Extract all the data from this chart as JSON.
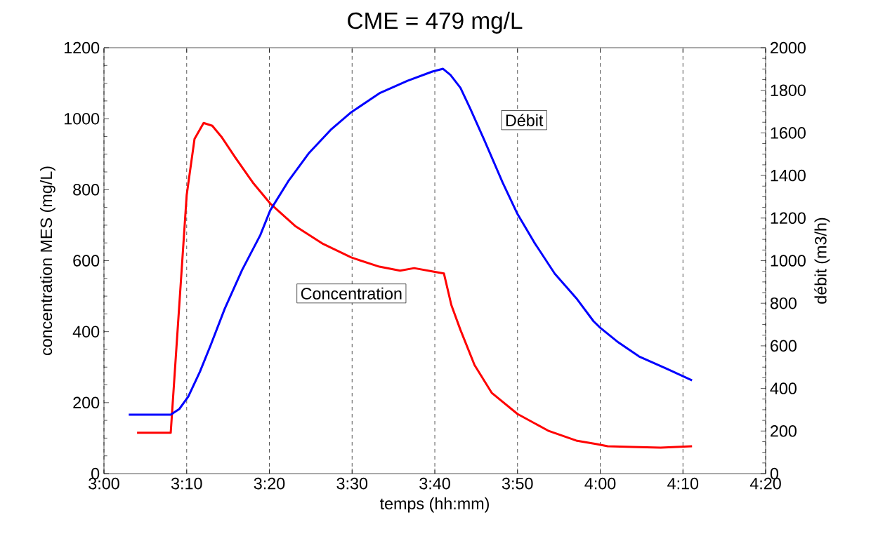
{
  "chart_data": {
    "type": "line",
    "title": "CME = 479 mg/L",
    "xlabel": "temps (hh:mm)",
    "ylabel": "concentration MES (mg/L)",
    "y2label": "débit (m3/h)",
    "xlim": [
      3.0,
      4.3333
    ],
    "xticks": [
      {
        "value": 3.0,
        "label": "3:00"
      },
      {
        "value": 3.1667,
        "label": "3:10"
      },
      {
        "value": 3.3333,
        "label": "3:20"
      },
      {
        "value": 3.5,
        "label": "3:30"
      },
      {
        "value": 3.6667,
        "label": "3:40"
      },
      {
        "value": 3.8333,
        "label": "3:50"
      },
      {
        "value": 4.0,
        "label": "4:00"
      },
      {
        "value": 4.1667,
        "label": "4:10"
      },
      {
        "value": 4.3333,
        "label": "4:20"
      }
    ],
    "ylim": [
      0,
      1200
    ],
    "yticks": [
      0,
      200,
      400,
      600,
      800,
      1000,
      1200
    ],
    "y2lim": [
      0,
      2000
    ],
    "y2ticks": [
      0,
      200,
      400,
      600,
      800,
      1000,
      1200,
      1400,
      1600,
      1800,
      2000
    ],
    "grid": "x",
    "legend": false,
    "marker": "none",
    "line_style": "solid",
    "series": [
      {
        "name": "Concentration",
        "color": "#ff0000",
        "axis": "y",
        "x": [
          3.0667,
          3.1345,
          3.1667,
          3.1825,
          3.2008,
          3.2183,
          3.2367,
          3.265,
          3.3,
          3.335,
          3.385,
          3.4417,
          3.4983,
          3.555,
          3.5967,
          3.625,
          3.665,
          3.685,
          3.7,
          3.7183,
          3.7467,
          3.7817,
          3.8333,
          3.895,
          3.9517,
          3.9933,
          4.015,
          4.065,
          4.1217,
          4.185
        ],
        "values": [
          115,
          115,
          785,
          943,
          988,
          980,
          949,
          890,
          820,
          761,
          698,
          647,
          609,
          583,
          572,
          579,
          569,
          564,
          475,
          405,
          306,
          227,
          168,
          121,
          93,
          83,
          77,
          75,
          73,
          77
        ]
      },
      {
        "name": "Débit",
        "color": "#0000ff",
        "axis": "y2",
        "x": [
          3.05,
          3.1345,
          3.1517,
          3.17,
          3.1933,
          3.215,
          3.2433,
          3.2783,
          3.315,
          3.335,
          3.3717,
          3.4133,
          3.4567,
          3.4983,
          3.555,
          3.6117,
          3.6617,
          3.6833,
          3.6983,
          3.7183,
          3.7383,
          3.7667,
          3.8033,
          3.8333,
          3.8667,
          3.9083,
          3.9517,
          3.9867,
          4.0,
          4.0367,
          4.0783,
          4.135,
          4.185
        ],
        "values": [
          277,
          277,
          303,
          362,
          478,
          603,
          774,
          956,
          1120,
          1236,
          1374,
          1506,
          1614,
          1697,
          1786,
          1845,
          1888,
          1901,
          1872,
          1812,
          1713,
          1565,
          1367,
          1219,
          1087,
          939,
          824,
          715,
          685,
          616,
          550,
          491,
          438
        ]
      }
    ]
  }
}
